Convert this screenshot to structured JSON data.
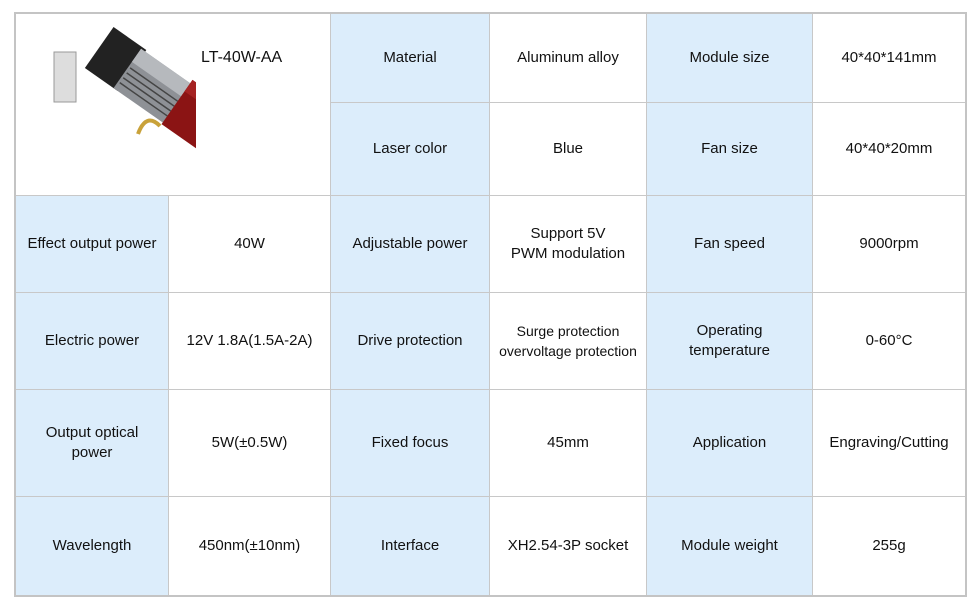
{
  "product": {
    "model": "LT-40W-AA",
    "image": "laser-module-photo"
  },
  "colors": {
    "label_bg": "#dcedfb",
    "value_bg": "#ffffff",
    "border": "#c8c8c8"
  },
  "rows": [
    [
      {
        "label": "Material",
        "value": "Aluminum alloy"
      },
      {
        "label": "Module size",
        "value": "40*40*141mm"
      }
    ],
    [
      {
        "label": "Laser color",
        "value": "Blue"
      },
      {
        "label": "Fan size",
        "value": "40*40*20mm"
      }
    ],
    [
      {
        "label": "Effect output power",
        "value": "40W"
      },
      {
        "label": "Adjustable power",
        "value": "Support 5V\nPWM modulation"
      },
      {
        "label": "Fan speed",
        "value": "9000rpm"
      }
    ],
    [
      {
        "label": "Electric power",
        "value": "12V 1.8A(1.5A-2A)"
      },
      {
        "label": "Drive protection",
        "value": "Surge protection\novervoltage protection"
      },
      {
        "label": "Operating\ntemperature",
        "value": "0-60°C"
      }
    ],
    [
      {
        "label": "Output optical\npower",
        "value": "5W(±0.5W)"
      },
      {
        "label": "Fixed focus",
        "value": "45mm"
      },
      {
        "label": "Application",
        "value": "Engraving/Cutting"
      }
    ],
    [
      {
        "label": "Wavelength",
        "value": "450nm(±10nm)"
      },
      {
        "label": "Interface",
        "value": "XH2.54-3P socket"
      },
      {
        "label": "Module weight",
        "value": "255g"
      }
    ]
  ]
}
